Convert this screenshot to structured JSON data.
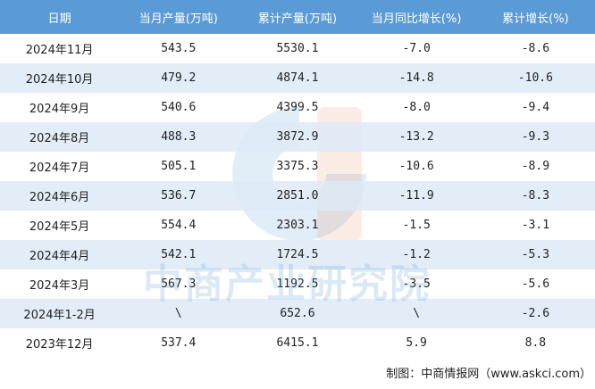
{
  "table": {
    "header": [
      "日期",
      "当月产量(万吨)",
      "累计产量(万吨)",
      "当月同比增长(%)",
      "累计增长(%)"
    ],
    "rows": [
      [
        "2024年11月",
        "543.5",
        "5530.1",
        "-7.0",
        "-8.6"
      ],
      [
        "2024年10月",
        "479.2",
        "4874.1",
        "-14.8",
        "-10.6"
      ],
      [
        "2024年9月",
        "540.6",
        "4399.5",
        "-8.0",
        "-9.4"
      ],
      [
        "2024年8月",
        "488.3",
        "3872.9",
        "-13.2",
        "-9.3"
      ],
      [
        "2024年7月",
        "505.1",
        "3375.3",
        "-10.6",
        "-8.9"
      ],
      [
        "2024年6月",
        "536.7",
        "2851.0",
        "-11.9",
        "-8.3"
      ],
      [
        "2024年5月",
        "554.4",
        "2303.1",
        "-1.5",
        "-3.1"
      ],
      [
        "2024年4月",
        "542.1",
        "1724.5",
        "-1.2",
        "-5.3"
      ],
      [
        "2024年3月",
        "567.3",
        "1192.5",
        "-3.5",
        "-5.6"
      ],
      [
        "2024年1-2月",
        "\\",
        "652.6",
        "\\",
        "-2.6"
      ],
      [
        "2023年12月",
        "537.4",
        "6415.1",
        "5.9",
        "8.8"
      ]
    ]
  },
  "watermark": "中商产业研究院",
  "footer": "制图：中商情报网（www.askci.com）"
}
